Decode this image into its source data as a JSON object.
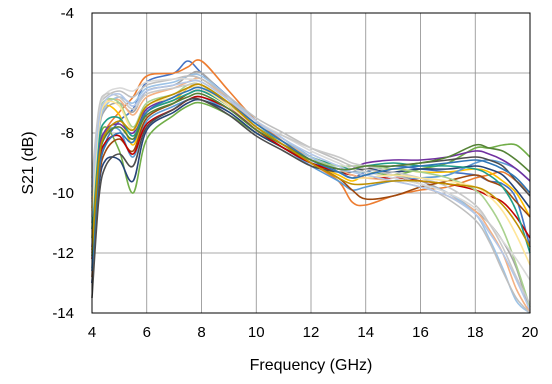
{
  "chart_data": {
    "type": "line",
    "title": "",
    "xlabel": "Frequency (GHz)",
    "ylabel": "S21 (dB)",
    "xlim": [
      4,
      20
    ],
    "ylim": [
      -14,
      -4
    ],
    "x_ticks": [
      4,
      6,
      8,
      10,
      12,
      14,
      16,
      18,
      20
    ],
    "y_ticks": [
      -4,
      -6,
      -8,
      -10,
      -12,
      -14
    ],
    "x_tick_labels": [
      "4",
      "6",
      "8",
      "10",
      "12",
      "14",
      "16",
      "18",
      "20"
    ],
    "y_tick_labels": [
      "-4",
      "-6",
      "-8",
      "-10",
      "-12",
      "-14"
    ],
    "grid": true,
    "legend": "none",
    "x": [
      4,
      4.25,
      4.5,
      5,
      5.5,
      6,
      7,
      7.5,
      8,
      9,
      10,
      11,
      12,
      13,
      13.5,
      14,
      15,
      16,
      17,
      18,
      18.5,
      19,
      19.5,
      20
    ],
    "series": [
      {
        "color": "#4472c4",
        "values": [
          -13.0,
          -9.5,
          -8.3,
          -7.6,
          -7.2,
          -6.3,
          -6.0,
          -5.6,
          -6.0,
          -6.8,
          -7.6,
          -8.2,
          -8.8,
          -9.3,
          -9.5,
          -9.3,
          -9.1,
          -9.2,
          -9.3,
          -9.4,
          -9.6,
          -9.7,
          -10.2,
          -11.8
        ]
      },
      {
        "color": "#ed7d31",
        "values": [
          -12.0,
          -8.8,
          -7.9,
          -7.3,
          -6.8,
          -6.1,
          -6.0,
          -5.8,
          -5.6,
          -6.6,
          -7.6,
          -8.3,
          -9.0,
          -9.6,
          -10.3,
          -10.4,
          -10.1,
          -9.9,
          -9.8,
          -9.5,
          -9.4,
          -9.3,
          -9.6,
          -10.0
        ]
      },
      {
        "color": "#a5a5a5",
        "values": [
          -11.0,
          -8.0,
          -7.2,
          -7.0,
          -7.3,
          -6.6,
          -6.4,
          -6.1,
          -6.0,
          -6.9,
          -7.8,
          -8.4,
          -8.9,
          -9.1,
          -9.2,
          -9.2,
          -9.4,
          -9.6,
          -10.0,
          -10.6,
          -11.0,
          -11.6,
          -12.5,
          -14.0
        ]
      },
      {
        "color": "#ffc000",
        "values": [
          -10.5,
          -7.8,
          -7.1,
          -7.4,
          -8.4,
          -7.3,
          -6.9,
          -6.5,
          -6.4,
          -7.1,
          -7.9,
          -8.5,
          -9.0,
          -9.4,
          -9.6,
          -9.4,
          -9.2,
          -9.3,
          -9.3,
          -9.2,
          -9.3,
          -9.6,
          -10.0,
          -10.8
        ]
      },
      {
        "color": "#5b9bd5",
        "values": [
          -12.5,
          -9.0,
          -8.0,
          -7.9,
          -8.8,
          -7.6,
          -7.1,
          -6.9,
          -6.8,
          -7.3,
          -8.0,
          -8.5,
          -9.1,
          -9.6,
          -9.9,
          -9.8,
          -9.6,
          -9.5,
          -9.4,
          -9.0,
          -8.9,
          -9.0,
          -9.2,
          -9.6
        ]
      },
      {
        "color": "#70ad47",
        "values": [
          -11.5,
          -8.5,
          -7.8,
          -8.6,
          -10.0,
          -8.2,
          -7.4,
          -7.1,
          -7.0,
          -7.4,
          -8.0,
          -8.5,
          -8.9,
          -9.2,
          -9.3,
          -9.3,
          -9.4,
          -9.2,
          -9.0,
          -8.5,
          -8.5,
          -8.4,
          -8.4,
          -8.8
        ]
      },
      {
        "color": "#264478",
        "values": [
          -13.0,
          -9.8,
          -8.9,
          -8.9,
          -9.6,
          -7.9,
          -7.3,
          -7.0,
          -6.9,
          -7.3,
          -8.0,
          -8.5,
          -9.0,
          -9.2,
          -9.2,
          -9.2,
          -9.3,
          -9.2,
          -9.2,
          -9.1,
          -9.2,
          -9.4,
          -9.9,
          -10.5
        ]
      },
      {
        "color": "#9e480e",
        "values": [
          -12.8,
          -9.6,
          -8.6,
          -8.2,
          -8.6,
          -7.5,
          -7.0,
          -6.7,
          -6.6,
          -7.1,
          -7.8,
          -8.4,
          -9.0,
          -9.5,
          -9.9,
          -10.2,
          -10.1,
          -9.8,
          -9.6,
          -9.4,
          -9.6,
          -9.8,
          -10.3,
          -10.8
        ]
      },
      {
        "color": "#7030a0",
        "values": [
          -11.8,
          -8.7,
          -7.9,
          -7.7,
          -8.0,
          -7.2,
          -6.8,
          -6.5,
          -6.5,
          -7.1,
          -7.9,
          -8.4,
          -8.9,
          -9.2,
          -9.2,
          -9.0,
          -8.9,
          -8.9,
          -8.8,
          -8.6,
          -8.7,
          -8.9,
          -9.2,
          -9.6
        ]
      },
      {
        "color": "#c00000",
        "values": [
          -12.2,
          -9.1,
          -8.3,
          -8.1,
          -8.7,
          -7.7,
          -7.2,
          -6.9,
          -6.8,
          -7.2,
          -7.9,
          -8.5,
          -9.0,
          -9.3,
          -9.4,
          -9.5,
          -9.5,
          -9.6,
          -9.7,
          -9.9,
          -10.1,
          -10.3,
          -10.8,
          -11.5
        ]
      },
      {
        "color": "#1f9e89",
        "values": [
          -11.2,
          -8.3,
          -7.6,
          -7.5,
          -8.1,
          -7.3,
          -6.9,
          -6.7,
          -6.6,
          -7.1,
          -7.8,
          -8.3,
          -8.8,
          -9.1,
          -9.2,
          -9.1,
          -9.0,
          -9.1,
          -9.1,
          -9.2,
          -9.4,
          -9.8,
          -10.6,
          -12.0
        ]
      },
      {
        "color": "#4d4d4d",
        "values": [
          -13.5,
          -10.2,
          -9.1,
          -8.7,
          -9.1,
          -7.8,
          -7.2,
          -6.9,
          -6.9,
          -7.4,
          -8.1,
          -8.6,
          -9.1,
          -9.3,
          -9.3,
          -9.2,
          -9.1,
          -9.0,
          -8.9,
          -8.8,
          -8.9,
          -9.1,
          -9.6,
          -10.1
        ]
      },
      {
        "color": "#f4b183",
        "values": [
          -10.2,
          -7.7,
          -7.0,
          -6.9,
          -7.4,
          -6.8,
          -6.5,
          -6.3,
          -6.2,
          -6.9,
          -7.7,
          -8.3,
          -8.8,
          -9.2,
          -9.4,
          -9.5,
          -9.6,
          -9.8,
          -10.1,
          -10.6,
          -11.2,
          -12.0,
          -13.2,
          -14.0
        ]
      },
      {
        "color": "#9dc3e6",
        "values": [
          -10.8,
          -7.9,
          -7.1,
          -6.8,
          -7.0,
          -6.5,
          -6.3,
          -6.1,
          -6.1,
          -6.8,
          -7.6,
          -8.2,
          -8.8,
          -9.2,
          -9.3,
          -9.3,
          -9.5,
          -9.7,
          -10.0,
          -10.7,
          -11.5,
          -12.5,
          -13.6,
          -14.0
        ]
      },
      {
        "color": "#a9d18e",
        "values": [
          -10.0,
          -7.5,
          -6.9,
          -7.0,
          -7.8,
          -7.0,
          -6.7,
          -6.4,
          -6.4,
          -7.0,
          -7.8,
          -8.4,
          -8.9,
          -9.1,
          -9.1,
          -9.1,
          -9.2,
          -9.3,
          -9.5,
          -9.9,
          -10.4,
          -11.2,
          -12.4,
          -13.8
        ]
      },
      {
        "color": "#bfbfbf",
        "values": [
          -9.8,
          -7.3,
          -6.8,
          -6.6,
          -6.8,
          -6.4,
          -6.2,
          -6.1,
          -6.2,
          -6.8,
          -7.5,
          -8.0,
          -8.5,
          -8.9,
          -9.1,
          -9.2,
          -9.4,
          -9.7,
          -10.2,
          -10.9,
          -11.6,
          -12.6,
          -13.5,
          -14.0
        ]
      },
      {
        "color": "#d9d9d9",
        "values": [
          -10.3,
          -7.4,
          -6.7,
          -6.5,
          -6.6,
          -6.3,
          -6.2,
          -6.2,
          -6.3,
          -6.9,
          -7.6,
          -8.1,
          -8.6,
          -9.0,
          -9.2,
          -9.3,
          -9.5,
          -9.7,
          -10.0,
          -10.5,
          -11.0,
          -11.6,
          -12.2,
          -12.9
        ]
      },
      {
        "color": "#c9c9c9",
        "values": [
          -9.5,
          -7.2,
          -6.7,
          -6.8,
          -7.2,
          -6.7,
          -6.5,
          -6.4,
          -6.4,
          -7.0,
          -7.7,
          -8.1,
          -8.5,
          -8.8,
          -9.0,
          -9.1,
          -9.3,
          -9.5,
          -9.8,
          -10.4,
          -11.0,
          -11.8,
          -12.8,
          -13.7
        ]
      },
      {
        "color": "#ffe699",
        "values": [
          -10.6,
          -7.8,
          -7.0,
          -7.1,
          -7.9,
          -7.1,
          -6.8,
          -6.5,
          -6.5,
          -7.1,
          -7.8,
          -8.4,
          -8.9,
          -9.3,
          -9.5,
          -9.5,
          -9.4,
          -9.5,
          -9.6,
          -9.8,
          -10.1,
          -10.6,
          -11.4,
          -12.4
        ]
      },
      {
        "color": "#b4c7e7",
        "values": [
          -10.1,
          -7.6,
          -6.9,
          -6.7,
          -7.1,
          -6.6,
          -6.4,
          -6.3,
          -6.3,
          -6.9,
          -7.6,
          -8.2,
          -8.7,
          -9.1,
          -9.3,
          -9.4,
          -9.6,
          -9.8,
          -10.1,
          -10.7,
          -11.3,
          -12.0,
          -12.9,
          -13.9
        ]
      },
      {
        "color": "#2e75b6",
        "values": [
          -12.6,
          -9.4,
          -8.4,
          -8.0,
          -8.3,
          -7.3,
          -6.8,
          -6.6,
          -6.5,
          -7.0,
          -7.7,
          -8.3,
          -8.9,
          -9.3,
          -9.5,
          -9.4,
          -9.2,
          -9.1,
          -9.0,
          -8.9,
          -9.0,
          -9.2,
          -9.5,
          -10.0
        ]
      },
      {
        "color": "#548235",
        "values": [
          -12.1,
          -9.0,
          -8.1,
          -7.8,
          -8.2,
          -7.4,
          -7.0,
          -6.8,
          -6.7,
          -7.2,
          -7.9,
          -8.4,
          -8.9,
          -9.2,
          -9.2,
          -9.1,
          -9.1,
          -9.0,
          -8.8,
          -8.4,
          -8.5,
          -8.6,
          -8.9,
          -9.3
        ]
      },
      {
        "color": "#bf9000",
        "values": [
          -11.9,
          -8.9,
          -8.0,
          -7.6,
          -7.9,
          -7.1,
          -6.7,
          -6.5,
          -6.4,
          -7.0,
          -7.8,
          -8.4,
          -9.0,
          -9.5,
          -9.7,
          -9.7,
          -9.6,
          -9.6,
          -9.7,
          -9.8,
          -10.0,
          -10.4,
          -11.0,
          -11.8
        ]
      }
    ]
  }
}
